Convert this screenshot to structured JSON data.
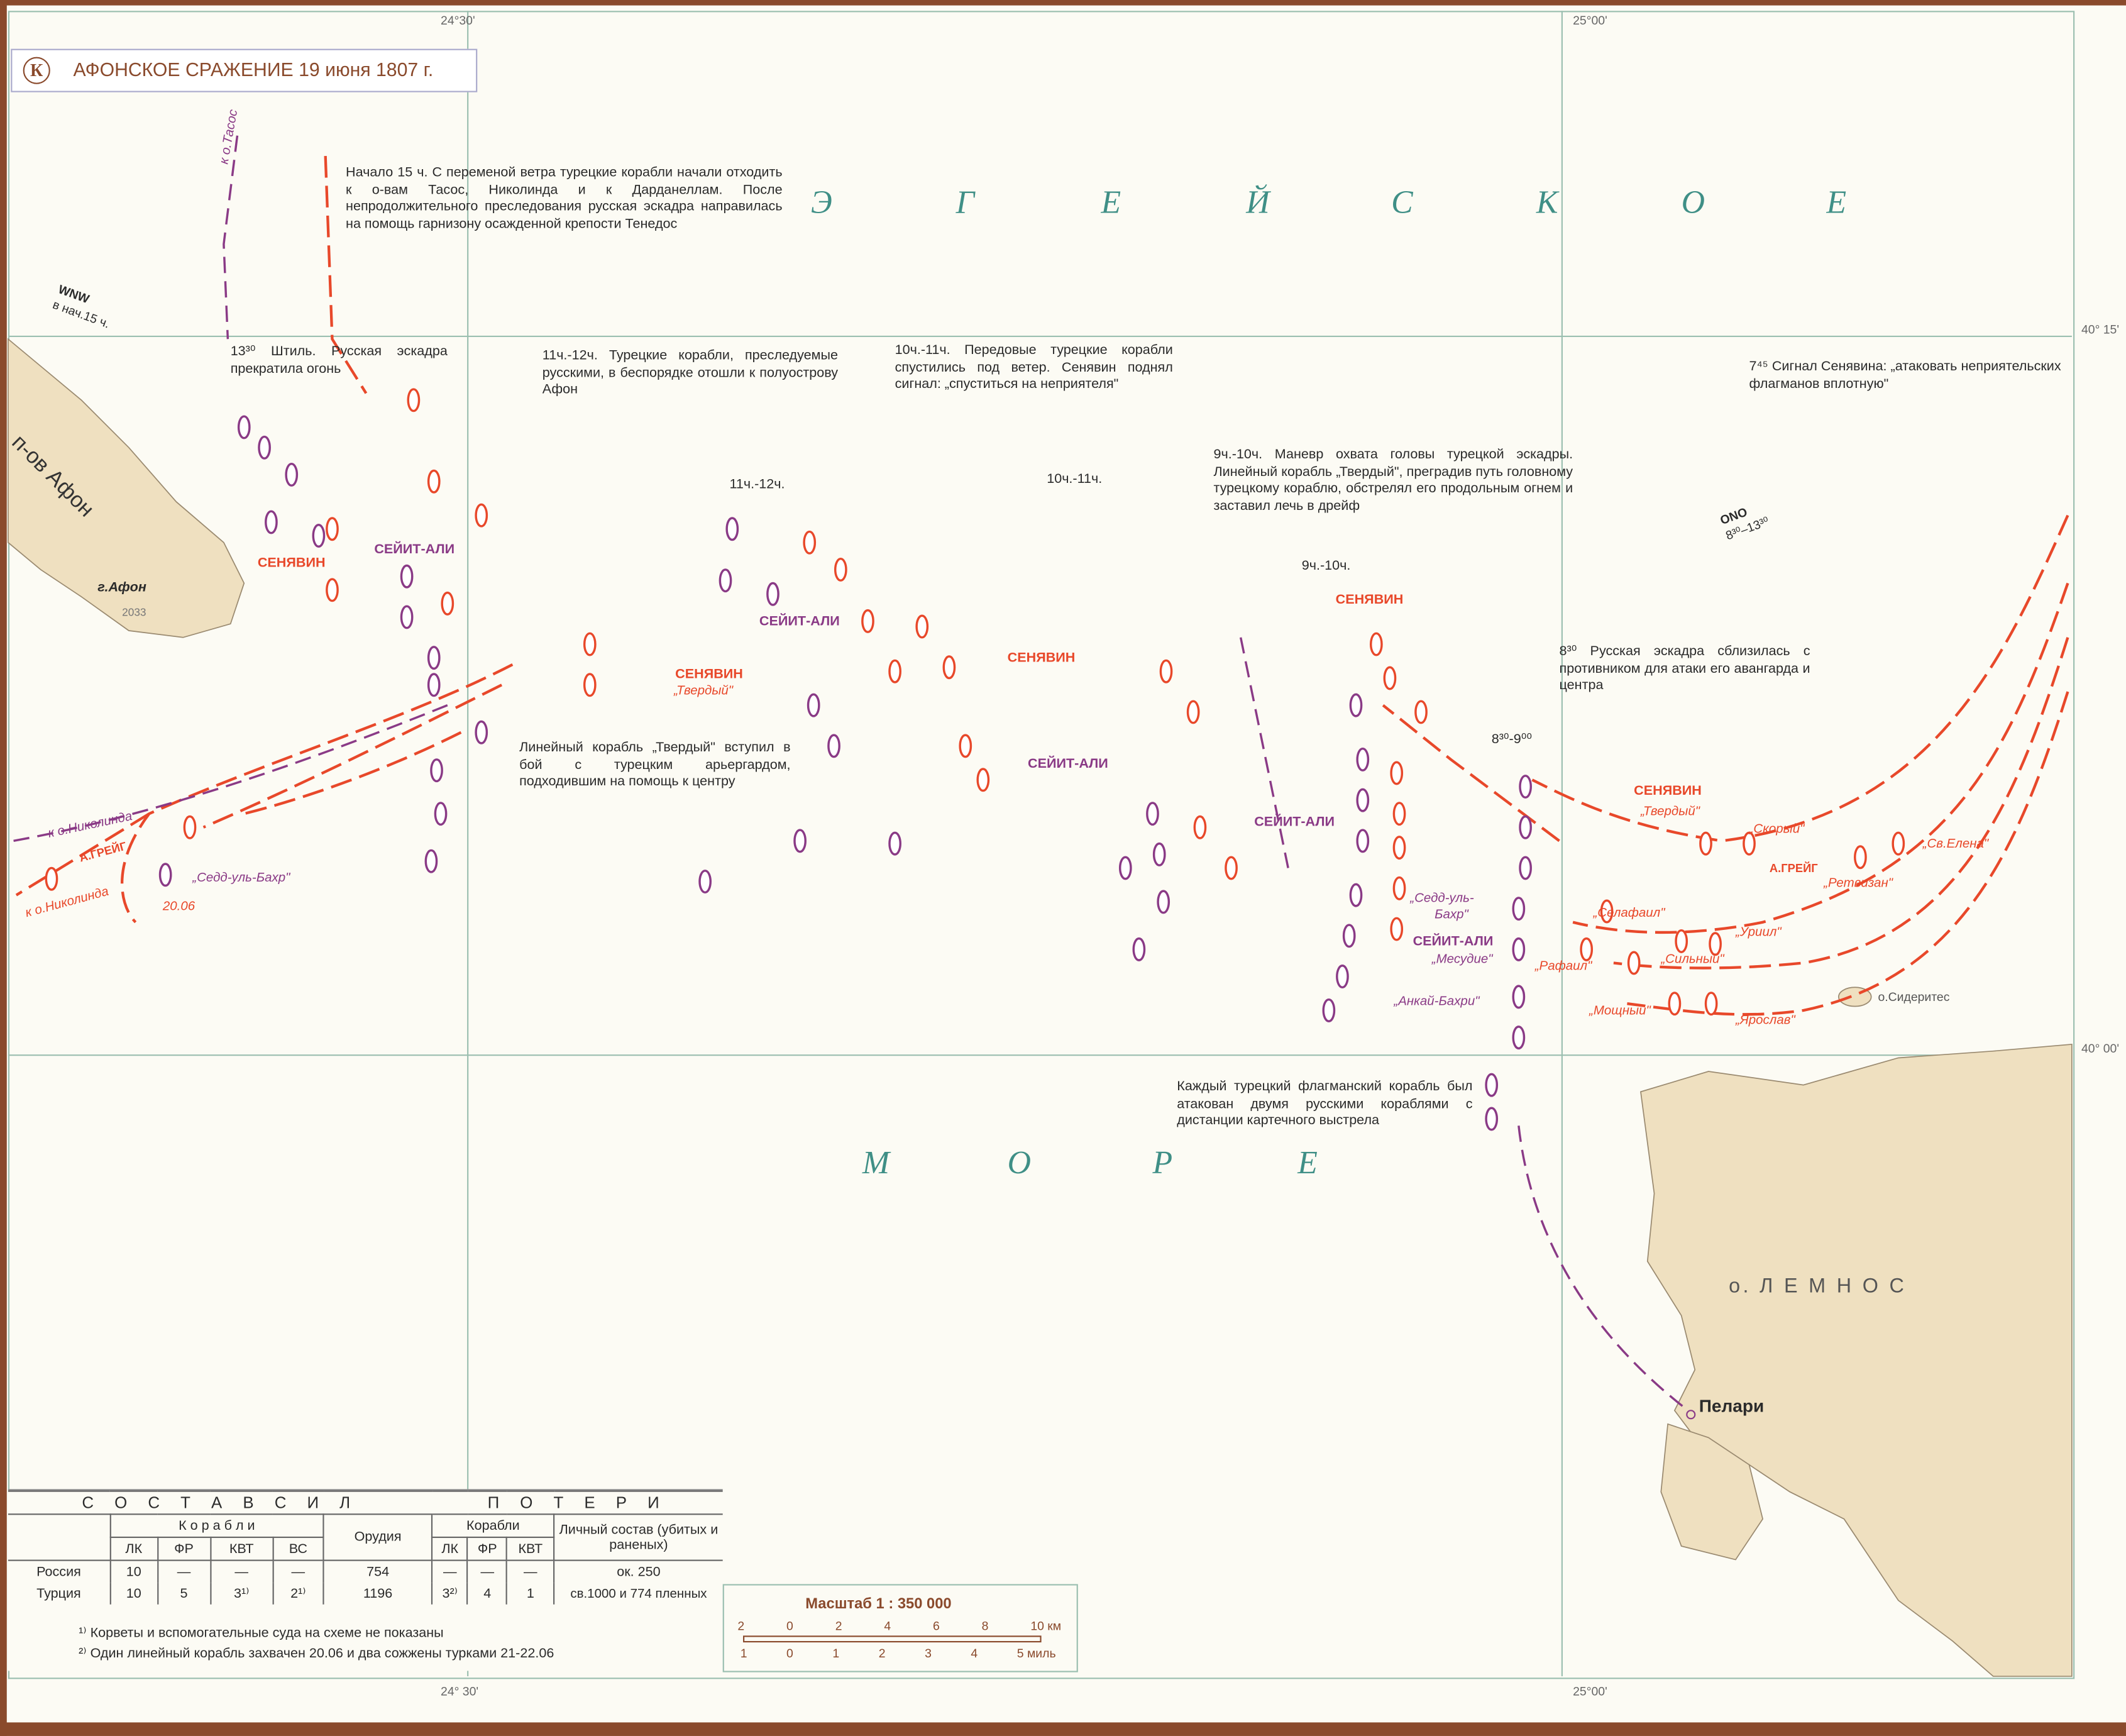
{
  "title": {
    "badge": "К",
    "text": "АФОНСКОЕ СРАЖЕНИЕ 19 июня 1807 г."
  },
  "colors": {
    "russian": "#e8482a",
    "turkish": "#8a3a86",
    "land": "#efe0c0",
    "sea_label": "#3f8f86",
    "frame": "#8a4a2c"
  },
  "coords": {
    "lon1_top": "24°30'",
    "lon2_top": "25°00'",
    "lon1_bottom": "24° 30'",
    "lon2_bottom": "25°00'",
    "lat1": "40° 15'",
    "lat2": "40° 00'"
  },
  "sea": {
    "top": [
      "Э",
      "Г",
      "Е",
      "Й",
      "С",
      "К",
      "О",
      "Е"
    ],
    "bottom": [
      "М",
      "О",
      "Р",
      "Е"
    ]
  },
  "land": {
    "athos": "п-ов Афон",
    "athos_mount": "г.Афон",
    "athos_height": "2033",
    "lemnos": "о. Л Е М Н О С",
    "pelari": "Пелари",
    "sideritis": "о.Сидеритес"
  },
  "wind": {
    "wnw": "WNW",
    "wnw_time": "в нач.15 ч.",
    "ono": "ONO",
    "ono_time": "8³⁰–13³⁰"
  },
  "annotations": {
    "a15": "Начало 15 ч. С переменой ветра турецкие корабли начали отходить к о-вам Тасос, Николинда и к Дарданеллам. После непродолжительного преследования русская эскадра направилась на помощь гарнизону осажденной крепости Тенедос",
    "a1330": "13³⁰ Штиль. Русская эскадра прекратила огонь",
    "a1112": "11ч.-12ч. Турецкие корабли, преследуемые русскими, в беспорядке отошли к полуострову Афон",
    "a1011": "10ч.-11ч. Передовые турецкие корабли спустились под ветер. Сенявин поднял сигнал: „спуститься на неприятеля\"",
    "a745": "7⁴⁵ Сигнал Сенявина: „атаковать неприятельских флагманов вплотную\"",
    "a910": "9ч.-10ч. Маневр охвата головы турецкой эскадры. Линейный корабль „Твердый\", преградив путь головному турецкому кораблю, обстрелял его продольным огнем и заставил лечь в дрейф",
    "a830": "8³⁰ Русская эскадра сблизилась с противником для атаки его авангарда и центра",
    "atverd": "Линейный корабль „Твердый\" вступил в бой с турецким арьергардом, подходившим на помощь к центру",
    "aflag": "Каждый турецкий флагманский корабль был атакован двумя русскими кораблями с дистанции картечного выстрела"
  },
  "time_labels": [
    "11ч.-12ч.",
    "10ч.-11ч.",
    "9ч.-10ч.",
    "8³⁰-9⁰⁰"
  ],
  "commanders": {
    "senyavin": "СЕНЯВИН",
    "seyit": "СЕЙИТ-АЛИ",
    "greig": "А.ГРЕЙГ"
  },
  "routes": {
    "tasos": "к о.Тасос",
    "nikolinda": "к о.Николинда",
    "date": "20.06"
  },
  "ship_names": {
    "tverdy": "„Твердый\"",
    "skory": "„Скорый\"",
    "elena": "„Св.Елена\"",
    "retvizan": "„Ретвизан\"",
    "selafail": "„Селафаил\"",
    "uriil": "„Уриил\"",
    "silny": "„Сильный\"",
    "rafail": "„Рафаил\"",
    "moshchny": "„Мощный\"",
    "yaroslav": "„Ярослав\"",
    "sedd": "„Седд-уль-Бахр\"",
    "sedd2a": "„Седд-уль-",
    "sedd2b": "Бахр\"",
    "mesudie": "„Месудие\"",
    "ankay": "„Анкай-Бахри\""
  },
  "legend": {
    "forces": "С О С Т А В   С И Л",
    "losses": "П О Т Е Р И",
    "ships": "К о р а б л и",
    "guns": "Орудия",
    "ships2": "Корабли",
    "personnel": "Личный состав (убитых и раненых)",
    "cols": [
      "ЛК",
      "ФР",
      "КВТ",
      "ВС"
    ],
    "loss_cols": [
      "ЛК",
      "ФР",
      "КВТ"
    ],
    "rows": [
      {
        "country": "Россия",
        "lk": "10",
        "fr": "—",
        "kvt": "—",
        "vs": "—",
        "guns": "754",
        "l_lk": "—",
        "l_fr": "—",
        "l_kvt": "—",
        "personnel": "ок. 250"
      },
      {
        "country": "Турция",
        "lk": "10",
        "fr": "5",
        "kvt": "3¹⁾",
        "vs": "2¹⁾",
        "guns": "1196",
        "l_lk": "3²⁾",
        "l_fr": "4",
        "l_kvt": "1",
        "personnel": "св.1000 и 774 пленных"
      }
    ],
    "note1": "¹⁾ Корветы и вспомогательные суда на схеме не показаны",
    "note2": "²⁾ Один линейный корабль захвачен 20.06 и два сожжены турками 21-22.06"
  },
  "scale": {
    "title": "Масштаб 1 : 350 000",
    "km_ticks": [
      "2",
      "0",
      "2",
      "4",
      "6",
      "8",
      "10 км"
    ],
    "mile_ticks": [
      "1",
      "0",
      "1",
      "2",
      "3",
      "4",
      "5 миль"
    ]
  }
}
